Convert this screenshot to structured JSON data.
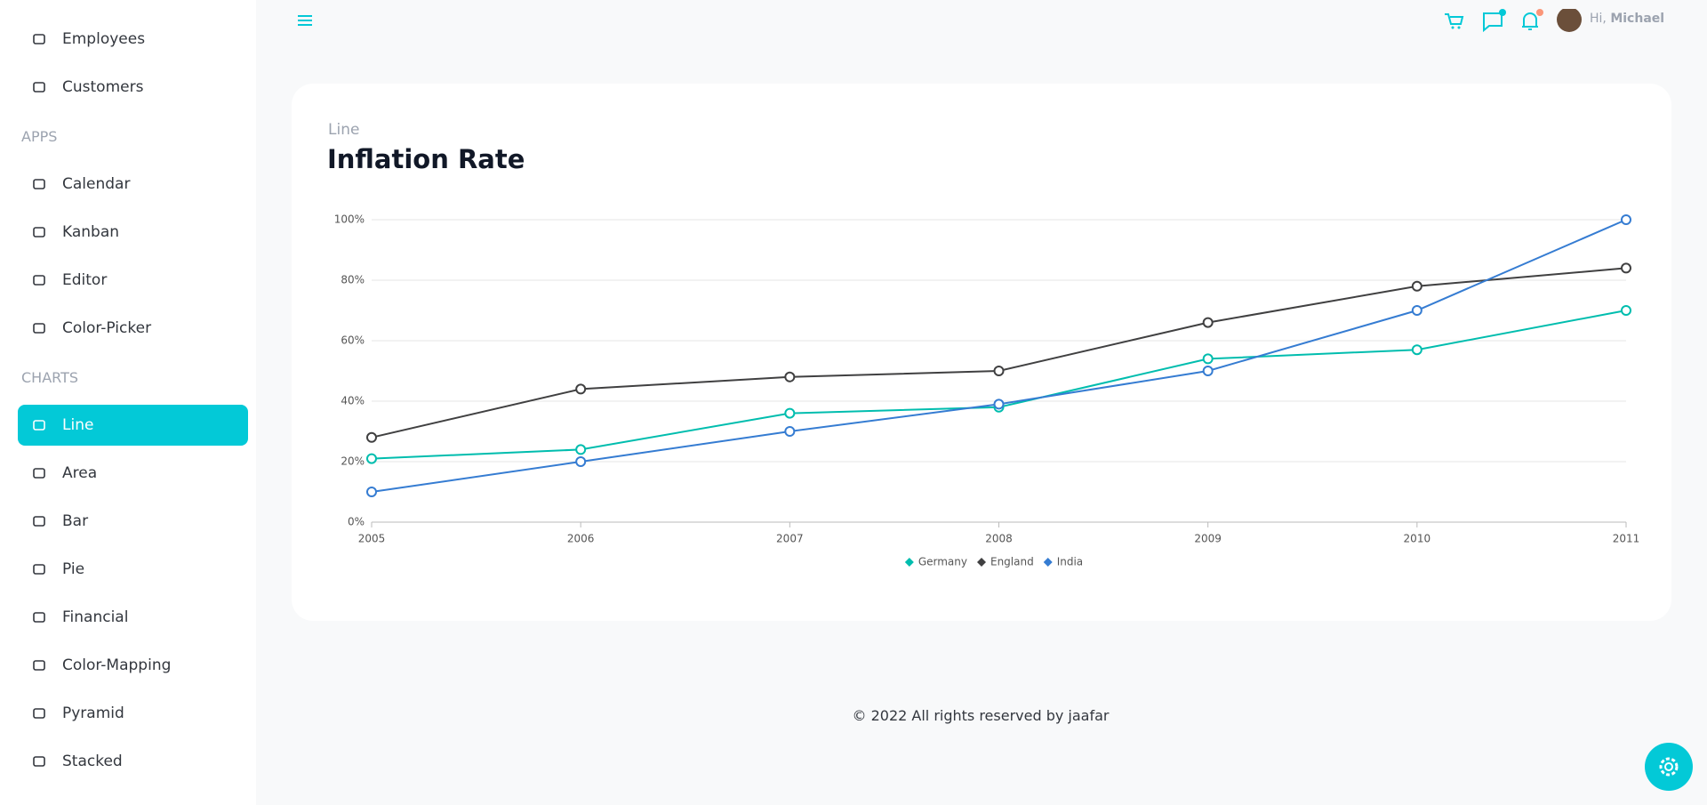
{
  "sidebar": {
    "pages": [
      "Employees",
      "Customers"
    ],
    "apps": {
      "heading": "APPS",
      "items": [
        "Calendar",
        "Kanban",
        "Editor",
        "Color-Picker"
      ]
    },
    "charts": {
      "heading": "CHARTS",
      "items": [
        "Line",
        "Area",
        "Bar",
        "Pie",
        "Financial",
        "Color-Mapping",
        "Pyramid",
        "Stacked"
      ],
      "active": 0
    }
  },
  "header": {
    "greeting": "Hi,",
    "user": "Michael"
  },
  "chart_data": {
    "type": "line",
    "subtitle": "Line",
    "title": "Inflation Rate",
    "x": [
      2005,
      2006,
      2007,
      2008,
      2009,
      2010,
      2011
    ],
    "xlim": [
      2005,
      2011
    ],
    "xticks": [
      2005,
      2006,
      2007,
      2008,
      2009,
      2010,
      2011
    ],
    "ylim": [
      0,
      100
    ],
    "yticks": [
      {
        "value": 0,
        "label": "0%"
      },
      {
        "value": 20,
        "label": "20%"
      },
      {
        "value": 40,
        "label": "40%"
      },
      {
        "value": 60,
        "label": "60%"
      },
      {
        "value": 80,
        "label": "80%"
      },
      {
        "value": 100,
        "label": "100%"
      }
    ],
    "grid": true,
    "legend": "bottom",
    "series": [
      {
        "name": "Germany",
        "color": "#00bdae",
        "values": [
          21,
          24,
          36,
          38,
          54,
          57,
          70
        ]
      },
      {
        "name": "England",
        "color": "#404041",
        "values": [
          28,
          44,
          48,
          50,
          66,
          78,
          84
        ]
      },
      {
        "name": "India",
        "color": "#357cd2",
        "values": [
          10,
          20,
          30,
          39,
          50,
          70,
          100
        ]
      }
    ]
  },
  "footer": "© 2022 All rights reserved by jaafar"
}
